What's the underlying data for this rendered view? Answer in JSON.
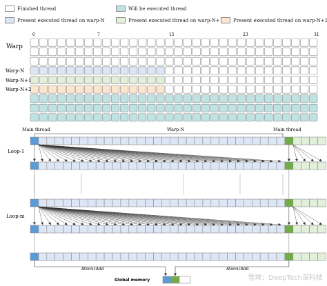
{
  "legend": [
    {
      "key": "finished",
      "label": "Finished thread",
      "color": "#ffffff"
    },
    {
      "key": "will",
      "label": "Will be executed thread",
      "color": "#bfe3e3"
    },
    {
      "key": "wn",
      "label": "Present executed thread on warp-N",
      "color": "#dde6f5"
    },
    {
      "key": "wn1",
      "label": "Present executed thread on warp-N+1",
      "color": "#e2efdb"
    },
    {
      "key": "wn2",
      "label": "Present executed thread on warp-N+2",
      "color": "#fbe6cd"
    }
  ],
  "top": {
    "tick_labels": [
      "0",
      "7",
      "15",
      "23",
      "31"
    ],
    "warp_label": "Warp",
    "row_labels": [
      "Warp-N",
      "Warp-N+1",
      "Warp-N+2"
    ],
    "completed_columns": 15,
    "total_columns": 32
  },
  "bottom": {
    "main_thread_left": "Main thread",
    "main_thread_right": "Main thread",
    "warp_label": "Warp-N",
    "loop_1": "Loop-1",
    "loop_m": "Loop-m",
    "atomic_add_left": "AtomicAdd",
    "atomic_add_right": "AtomicAdd",
    "global_memory": "Global  memory"
  },
  "colors": {
    "main_blue": "#5b9bd5",
    "main_green": "#70ad47",
    "cell_border": "#8a8a8a"
  },
  "watermark": "雪球：DeepTech深科技"
}
